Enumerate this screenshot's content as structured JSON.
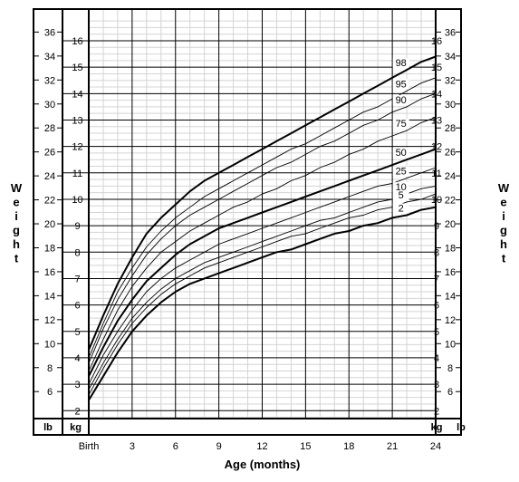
{
  "chart_data": {
    "type": "line",
    "title": "",
    "xlabel": "Age (months)",
    "ylabel_left": "Weight",
    "ylabel_right": "Weight",
    "x_tick_labels": [
      "Birth",
      "3",
      "6",
      "9",
      "12",
      "15",
      "18",
      "21",
      "24"
    ],
    "x_ticks": [
      0,
      3,
      6,
      9,
      12,
      15,
      18,
      21,
      24
    ],
    "xlim": [
      0,
      24
    ],
    "ylim_kg": [
      1.7,
      17.2
    ],
    "kg_ticks": [
      2,
      3,
      4,
      5,
      6,
      7,
      8,
      9,
      10,
      11,
      12,
      13,
      14,
      15,
      16
    ],
    "lb_ticks": [
      6,
      8,
      10,
      12,
      14,
      16,
      18,
      20,
      22,
      24,
      26,
      28,
      30,
      32,
      34,
      36
    ],
    "unit_kg": "kg",
    "unit_lb": "lb",
    "grid": true,
    "series": [
      {
        "name": "98",
        "heavy": true,
        "x": [
          0,
          1,
          2,
          3,
          4,
          5,
          6,
          7,
          8,
          9,
          10,
          11,
          12,
          13,
          14,
          15,
          16,
          17,
          18,
          19,
          20,
          21,
          22,
          23,
          24
        ],
        "values": [
          4.3,
          5.6,
          6.8,
          7.8,
          8.7,
          9.3,
          9.8,
          10.3,
          10.7,
          11.0,
          11.3,
          11.6,
          11.9,
          12.2,
          12.5,
          12.8,
          13.1,
          13.4,
          13.7,
          14.0,
          14.3,
          14.6,
          14.9,
          15.2,
          15.4
        ]
      },
      {
        "name": "95",
        "heavy": false,
        "x": [
          0,
          1,
          2,
          3,
          4,
          5,
          6,
          7,
          8,
          9,
          10,
          11,
          12,
          13,
          14,
          15,
          16,
          17,
          18,
          19,
          20,
          21,
          22,
          23,
          24
        ],
        "values": [
          4.0,
          5.3,
          6.5,
          7.4,
          8.2,
          8.8,
          9.3,
          9.7,
          10.1,
          10.4,
          10.7,
          11.0,
          11.3,
          11.6,
          11.9,
          12.1,
          12.4,
          12.7,
          13.0,
          13.3,
          13.5,
          13.8,
          14.1,
          14.4,
          14.6
        ]
      },
      {
        "name": "90",
        "heavy": false,
        "x": [
          0,
          1,
          2,
          3,
          4,
          5,
          6,
          7,
          8,
          9,
          10,
          11,
          12,
          13,
          14,
          15,
          16,
          17,
          18,
          19,
          20,
          21,
          22,
          23,
          24
        ],
        "values": [
          3.8,
          5.1,
          6.2,
          7.1,
          7.9,
          8.5,
          9.0,
          9.4,
          9.7,
          10.0,
          10.3,
          10.6,
          10.9,
          11.2,
          11.4,
          11.7,
          12.0,
          12.2,
          12.5,
          12.8,
          13.0,
          13.3,
          13.5,
          13.8,
          14.0
        ]
      },
      {
        "name": "75",
        "heavy": false,
        "x": [
          0,
          1,
          2,
          3,
          4,
          5,
          6,
          7,
          8,
          9,
          10,
          11,
          12,
          13,
          14,
          15,
          16,
          17,
          18,
          19,
          20,
          21,
          22,
          23,
          24
        ],
        "values": [
          3.5,
          4.7,
          5.8,
          6.7,
          7.4,
          8.0,
          8.4,
          8.8,
          9.1,
          9.4,
          9.7,
          9.9,
          10.2,
          10.4,
          10.7,
          10.9,
          11.2,
          11.4,
          11.7,
          11.9,
          12.2,
          12.4,
          12.6,
          12.9,
          13.1
        ]
      },
      {
        "name": "50",
        "heavy": true,
        "x": [
          0,
          1,
          2,
          3,
          4,
          5,
          6,
          7,
          8,
          9,
          10,
          11,
          12,
          13,
          14,
          15,
          16,
          17,
          18,
          19,
          20,
          21,
          22,
          23,
          24
        ],
        "values": [
          3.3,
          4.4,
          5.4,
          6.2,
          6.9,
          7.4,
          7.9,
          8.3,
          8.6,
          8.9,
          9.1,
          9.3,
          9.5,
          9.7,
          9.9,
          10.1,
          10.3,
          10.5,
          10.7,
          10.9,
          11.1,
          11.3,
          11.5,
          11.7,
          11.9
        ]
      },
      {
        "name": "25",
        "heavy": false,
        "x": [
          0,
          1,
          2,
          3,
          4,
          5,
          6,
          7,
          8,
          9,
          10,
          11,
          12,
          13,
          14,
          15,
          16,
          17,
          18,
          19,
          20,
          21,
          22,
          23,
          24
        ],
        "values": [
          3.0,
          4.1,
          5.0,
          5.8,
          6.5,
          7.0,
          7.4,
          7.7,
          8.0,
          8.3,
          8.5,
          8.7,
          8.9,
          9.1,
          9.3,
          9.5,
          9.7,
          9.9,
          10.1,
          10.3,
          10.5,
          10.6,
          10.8,
          11.0,
          11.2
        ]
      },
      {
        "name": "10",
        "heavy": false,
        "x": [
          0,
          1,
          2,
          3,
          4,
          5,
          6,
          7,
          8,
          9,
          10,
          11,
          12,
          13,
          14,
          15,
          16,
          17,
          18,
          19,
          20,
          21,
          22,
          23,
          24
        ],
        "values": [
          2.8,
          3.8,
          4.7,
          5.5,
          6.1,
          6.6,
          7.0,
          7.3,
          7.6,
          7.8,
          8.0,
          8.2,
          8.4,
          8.6,
          8.8,
          9.0,
          9.2,
          9.3,
          9.5,
          9.7,
          9.9,
          10.0,
          10.2,
          10.4,
          10.5
        ]
      },
      {
        "name": "5",
        "heavy": false,
        "x": [
          0,
          1,
          2,
          3,
          4,
          5,
          6,
          7,
          8,
          9,
          10,
          11,
          12,
          13,
          14,
          15,
          16,
          17,
          18,
          19,
          20,
          21,
          22,
          23,
          24
        ],
        "values": [
          2.6,
          3.6,
          4.5,
          5.3,
          5.9,
          6.4,
          6.8,
          7.1,
          7.4,
          7.6,
          7.8,
          8.0,
          8.2,
          8.4,
          8.6,
          8.7,
          8.9,
          9.1,
          9.3,
          9.4,
          9.6,
          9.7,
          9.9,
          10.0,
          10.2
        ]
      },
      {
        "name": "2",
        "heavy": true,
        "x": [
          0,
          1,
          2,
          3,
          4,
          5,
          6,
          7,
          8,
          9,
          10,
          11,
          12,
          13,
          14,
          15,
          16,
          17,
          18,
          19,
          20,
          21,
          22,
          23,
          24
        ],
        "values": [
          2.4,
          3.3,
          4.2,
          5.0,
          5.6,
          6.1,
          6.5,
          6.8,
          7.0,
          7.2,
          7.4,
          7.6,
          7.8,
          8.0,
          8.1,
          8.3,
          8.5,
          8.7,
          8.8,
          9.0,
          9.1,
          9.3,
          9.4,
          9.6,
          9.7
        ]
      }
    ]
  }
}
